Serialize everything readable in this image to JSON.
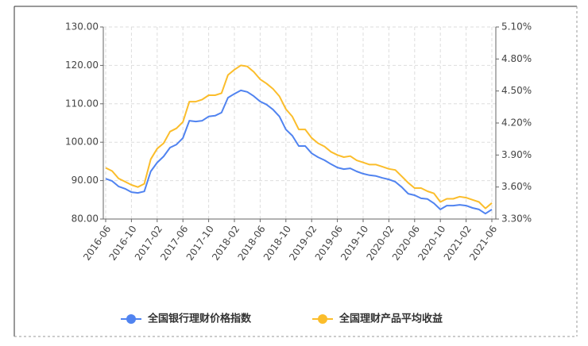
{
  "chart_data": {
    "type": "line",
    "categories": [
      "2016-06",
      null,
      null,
      null,
      "2016-10",
      null,
      null,
      null,
      "2017-02",
      null,
      null,
      null,
      "2017-06",
      null,
      null,
      null,
      "2017-10",
      null,
      null,
      null,
      "2018-02",
      null,
      null,
      null,
      "2018-06",
      null,
      null,
      null,
      "2018-10",
      null,
      null,
      null,
      "2019-02",
      null,
      null,
      null,
      "2019-06",
      null,
      null,
      null,
      "2019-10",
      null,
      null,
      null,
      "2020-02",
      null,
      null,
      null,
      "2020-06",
      null,
      null,
      null,
      "2020-10",
      null,
      null,
      null,
      "2021-02",
      null,
      null,
      null,
      "2021-06"
    ],
    "series": [
      {
        "name": "全国银行理财价格指数",
        "color": "#5083f0",
        "axis": "y",
        "values": [
          90.5,
          89.9,
          88.5,
          87.9,
          87.0,
          86.8,
          87.2,
          92.4,
          94.7,
          96.3,
          98.6,
          99.4,
          101.1,
          105.6,
          105.4,
          105.6,
          106.7,
          106.9,
          107.7,
          111.6,
          112.6,
          113.5,
          113.1,
          112.0,
          110.6,
          109.8,
          108.5,
          106.7,
          103.3,
          101.7,
          99.0,
          99.0,
          97.1,
          96.1,
          95.3,
          94.3,
          93.4,
          93.0,
          93.2,
          92.4,
          91.8,
          91.4,
          91.2,
          90.7,
          90.3,
          89.7,
          88.3,
          86.6,
          86.2,
          85.4,
          85.2,
          84.1,
          82.5,
          83.5,
          83.5,
          83.7,
          83.5,
          82.9,
          82.5,
          81.4,
          82.5
        ]
      },
      {
        "name": "全国理财产品平均收益",
        "color": "#fbbd2b",
        "axis": "y2",
        "values": [
          3.78,
          3.75,
          3.68,
          3.65,
          3.62,
          3.6,
          3.63,
          3.86,
          3.96,
          4.01,
          4.12,
          4.15,
          4.21,
          4.4,
          4.4,
          4.42,
          4.46,
          4.46,
          4.48,
          4.65,
          4.7,
          4.74,
          4.73,
          4.68,
          4.61,
          4.57,
          4.52,
          4.45,
          4.33,
          4.26,
          4.14,
          4.14,
          4.06,
          4.01,
          3.98,
          3.93,
          3.9,
          3.88,
          3.89,
          3.85,
          3.83,
          3.81,
          3.81,
          3.79,
          3.77,
          3.76,
          3.7,
          3.64,
          3.59,
          3.59,
          3.56,
          3.54,
          3.46,
          3.49,
          3.49,
          3.51,
          3.5,
          3.48,
          3.46,
          3.4,
          3.45
        ]
      }
    ],
    "ylim": [
      80,
      130
    ],
    "yticks": [
      {
        "value": 80,
        "label": "80.00"
      },
      {
        "value": 90,
        "label": "90.00"
      },
      {
        "value": 100,
        "label": "100.00"
      },
      {
        "value": 110,
        "label": "110.00"
      },
      {
        "value": 120,
        "label": "120.00"
      },
      {
        "value": 130,
        "label": "130.00"
      }
    ],
    "y2lim": [
      3.3,
      5.1
    ],
    "y2ticks": [
      {
        "value": 3.3,
        "label": "3.30%"
      },
      {
        "value": 3.6,
        "label": "3.60%"
      },
      {
        "value": 3.9,
        "label": "3.90%"
      },
      {
        "value": 4.2,
        "label": "4.20%"
      },
      {
        "value": 4.5,
        "label": "4.50%"
      },
      {
        "value": 4.8,
        "label": "4.80%"
      },
      {
        "value": 5.1,
        "label": "5.10%"
      }
    ],
    "grid": true,
    "legend": "bottom"
  }
}
